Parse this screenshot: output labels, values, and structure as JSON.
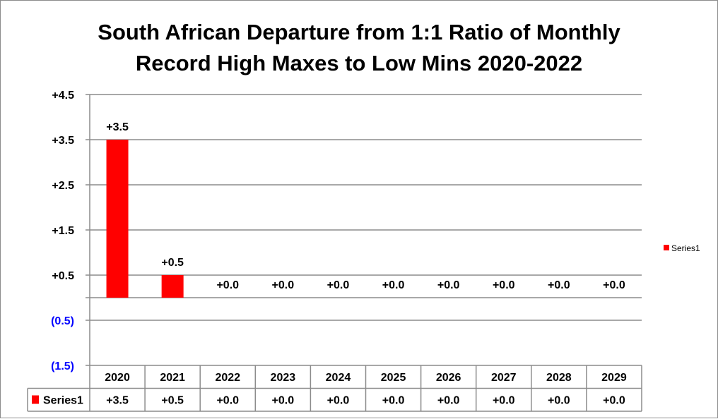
{
  "chart_data": {
    "type": "bar",
    "title_lines": [
      "South African Departure from 1:1 Ratio of Monthly",
      "Record High Maxes to Low Mins 2020-2022"
    ],
    "categories": [
      "2020",
      "2021",
      "2022",
      "2023",
      "2024",
      "2025",
      "2026",
      "2027",
      "2028",
      "2029"
    ],
    "series": [
      {
        "name": "Series1",
        "values": [
          3.5,
          0.5,
          0.0,
          0.0,
          0.0,
          0.0,
          0.0,
          0.0,
          0.0,
          0.0
        ],
        "labels": [
          "+3.5",
          "+0.5",
          "+0.0",
          "+0.0",
          "+0.0",
          "+0.0",
          "+0.0",
          "+0.0",
          "+0.0",
          "+0.0"
        ],
        "color": "#ff0000"
      }
    ],
    "y_ticks": [
      {
        "value": 4.5,
        "label": "+4.5",
        "color": "#000000"
      },
      {
        "value": 3.5,
        "label": "+3.5",
        "color": "#000000"
      },
      {
        "value": 2.5,
        "label": "+2.5",
        "color": "#000000"
      },
      {
        "value": 1.5,
        "label": "+1.5",
        "color": "#000000"
      },
      {
        "value": 0.5,
        "label": "+0.5",
        "color": "#000000"
      },
      {
        "value": -0.5,
        "label": "(0.5)",
        "color": "#0000ff"
      },
      {
        "value": -1.5,
        "label": "(1.5)",
        "color": "#0000ff"
      }
    ],
    "ylim": [
      -1.5,
      4.5
    ],
    "grid": true,
    "legend_position": "right",
    "data_table": true,
    "xlabel": "",
    "ylabel": ""
  }
}
